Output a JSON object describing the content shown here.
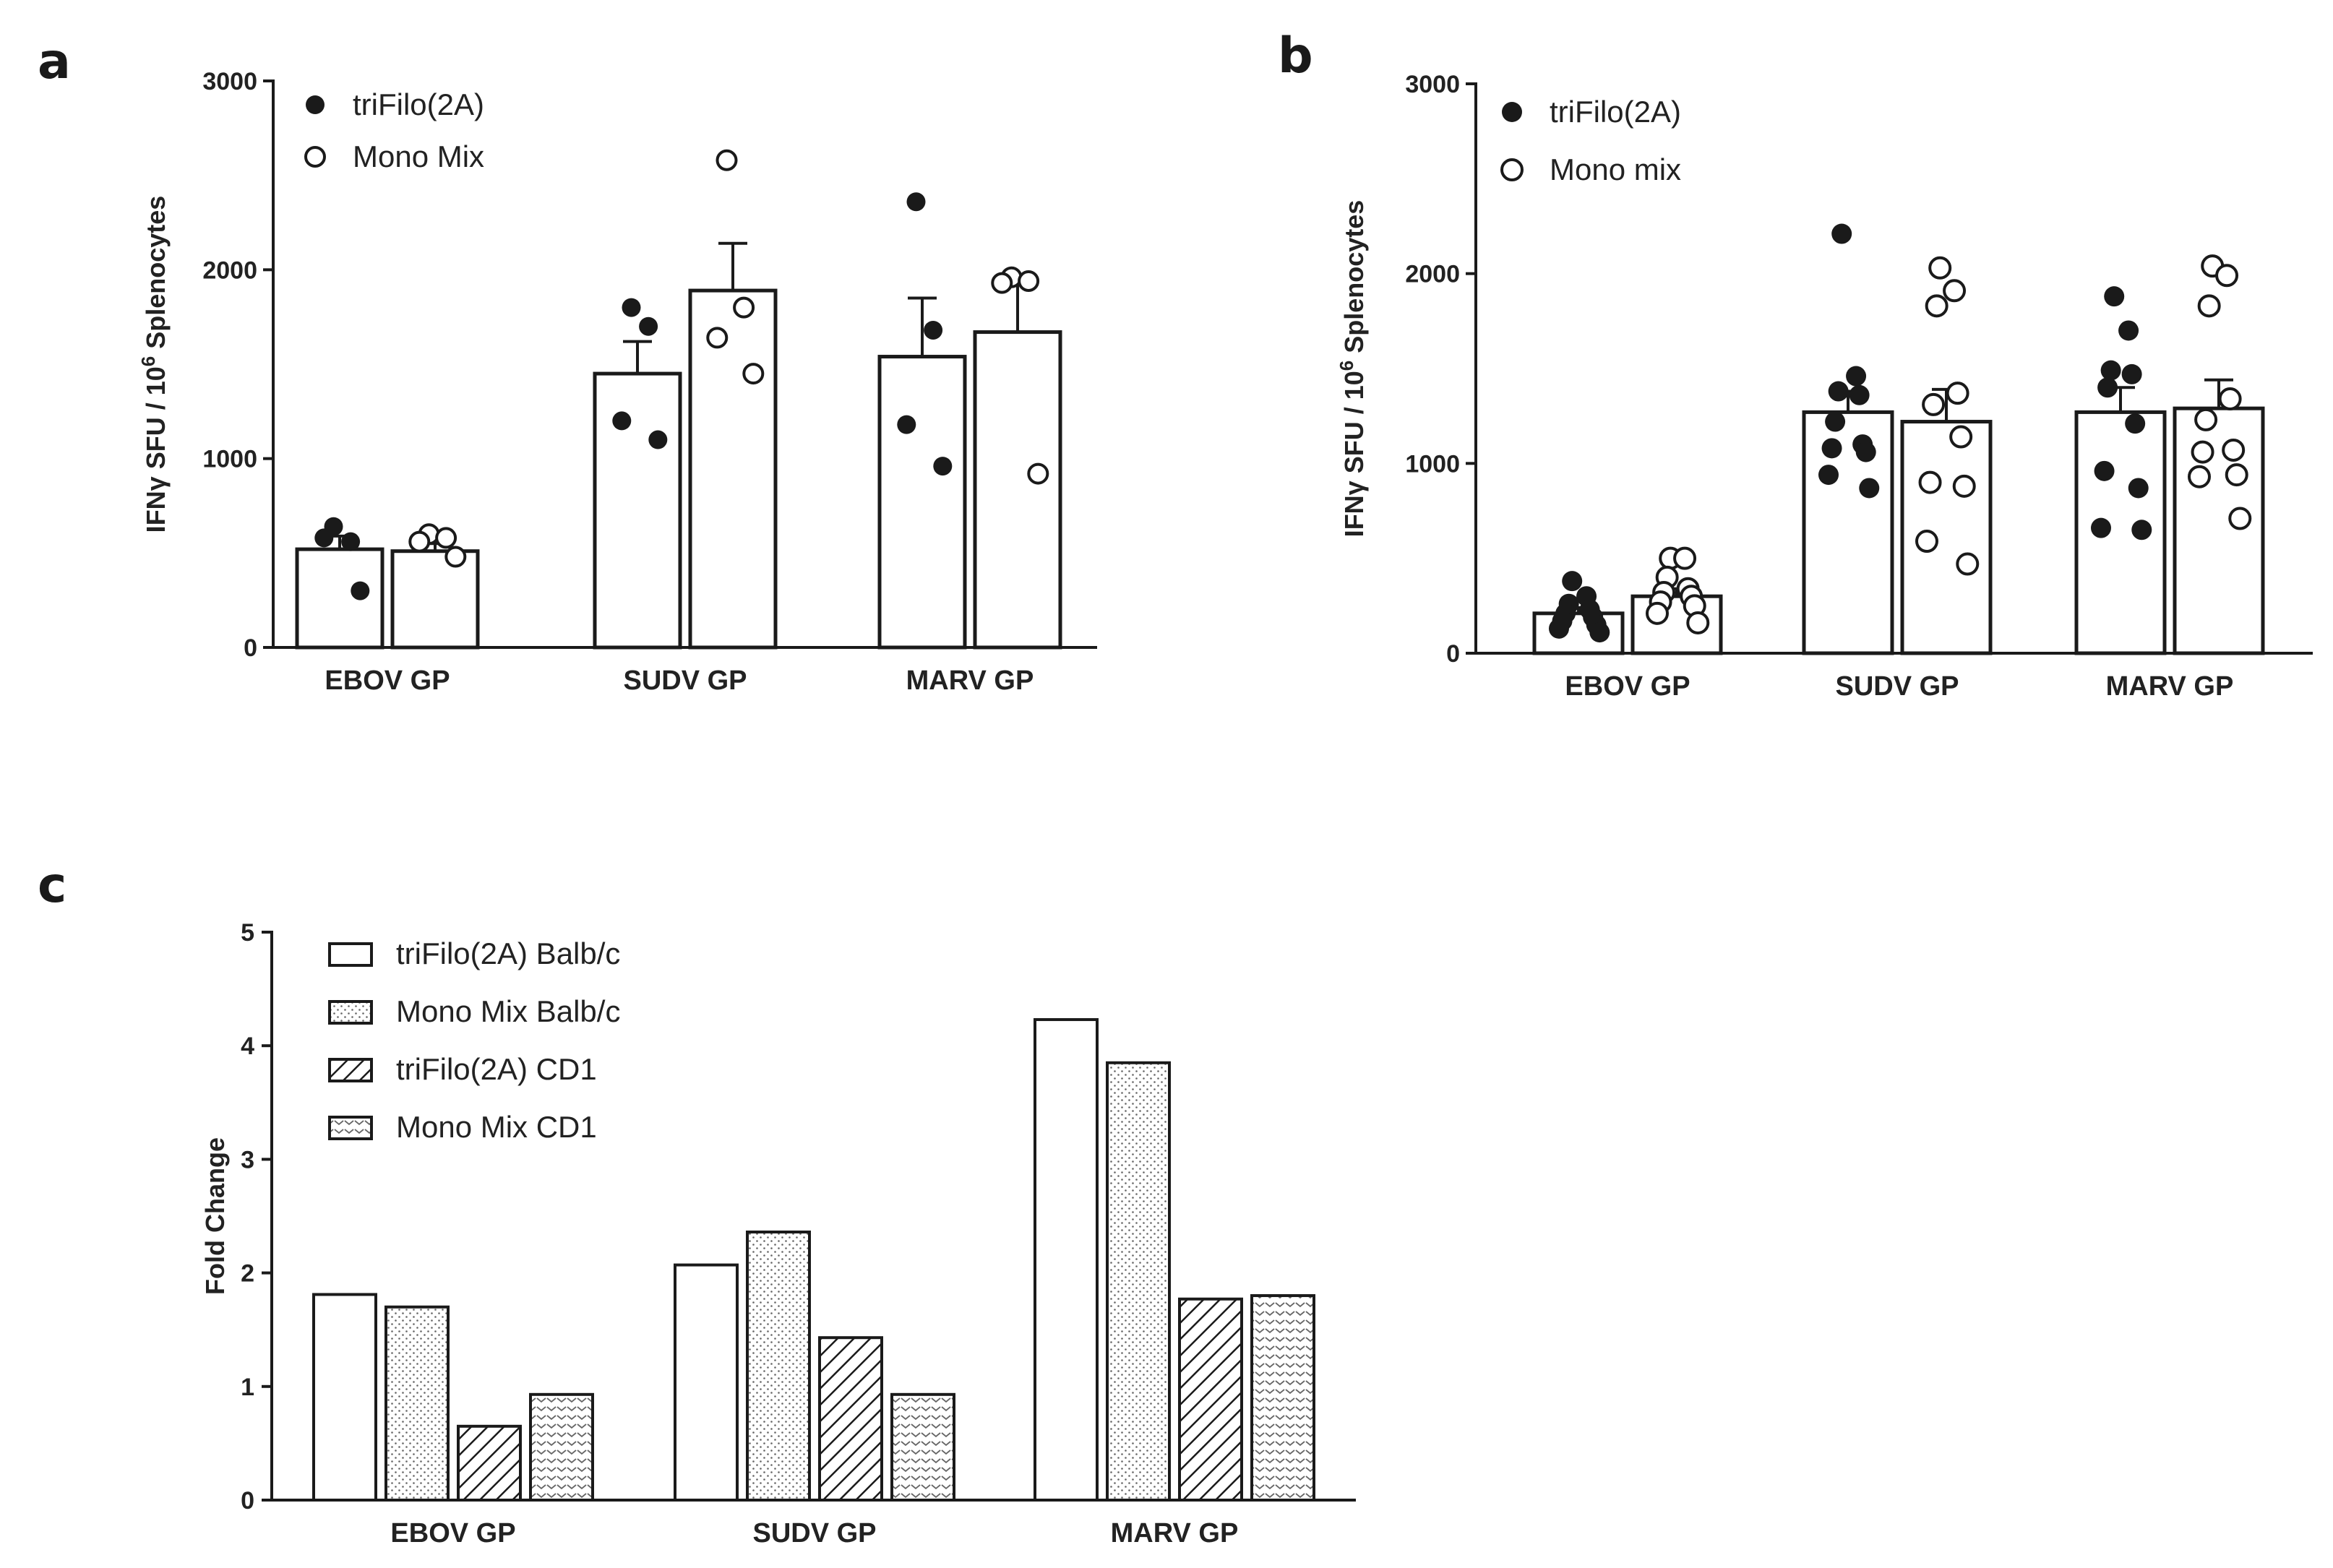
{
  "chart_data": [
    {
      "panel": "a",
      "type": "bar",
      "ylabel_prefix": "IFNγ SFU / 10",
      "ylabel_sup": "6",
      "ylabel_suffix": " Splenocytes",
      "ylim": [
        0,
        3000
      ],
      "yticks": [
        "0",
        "1000",
        "2000",
        "3000"
      ],
      "categories": [
        "EBOV GP",
        "SUDV GP",
        "MARV GP"
      ],
      "legend": [
        "triFilo(2A)",
        "Mono Mix"
      ],
      "series": [
        {
          "name": "triFilo(2A)",
          "marker": "filled",
          "values": [
            520,
            1450,
            1540
          ],
          "errors": [
            70,
            170,
            310
          ],
          "points": [
            [
              640,
              560,
              580,
              300
            ],
            [
              1800,
              1700,
              1200,
              1100
            ],
            [
              2360,
              1680,
              1180,
              960
            ]
          ]
        },
        {
          "name": "Mono Mix",
          "marker": "open",
          "values": [
            510,
            1890,
            1670
          ],
          "errors": [
            40,
            250,
            260
          ],
          "points": [
            [
              600,
              580,
              560,
              480
            ],
            [
              2580,
              1800,
              1640,
              1450
            ],
            [
              1960,
              1940,
              1930,
              920
            ]
          ]
        }
      ]
    },
    {
      "panel": "b",
      "type": "bar",
      "ylabel_prefix": "IFNγ SFU / 10",
      "ylabel_sup": "6",
      "ylabel_suffix": " Splenocytes",
      "ylim": [
        0,
        3000
      ],
      "yticks": [
        "0",
        "1000",
        "2000",
        "3000"
      ],
      "categories": [
        "EBOV GP",
        "SUDV GP",
        "MARV GP"
      ],
      "legend": [
        "triFilo(2A)",
        "Mono mix"
      ],
      "series": [
        {
          "name": "triFilo(2A)",
          "marker": "filled",
          "values": [
            210,
            1270,
            1270
          ],
          "errors": [
            30,
            110,
            130
          ],
          "points": [
            [
              380,
              300,
              260,
              230,
              210,
              190,
              170,
              150,
              130,
              110
            ],
            [
              2210,
              1460,
              1380,
              1360,
              1220,
              1100,
              1080,
              1060,
              940,
              870
            ],
            [
              1880,
              1700,
              1490,
              1470,
              1400,
              1210,
              960,
              870,
              660,
              650
            ]
          ]
        },
        {
          "name": "Mono mix",
          "marker": "open",
          "values": [
            300,
            1220,
            1290
          ],
          "errors": [
            40,
            170,
            150
          ],
          "points": [
            [
              500,
              500,
              400,
              340,
              320,
              300,
              270,
              250,
              210,
              160
            ],
            [
              2030,
              1910,
              1830,
              1370,
              1310,
              1140,
              900,
              880,
              590,
              470
            ],
            [
              2040,
              1990,
              1830,
              1340,
              1230,
              1070,
              1060,
              940,
              930,
              710
            ]
          ]
        }
      ]
    },
    {
      "panel": "c",
      "type": "bar",
      "ylabel": "Fold Change",
      "ylim": [
        0,
        5
      ],
      "yticks": [
        "0",
        "1",
        "2",
        "3",
        "4",
        "5"
      ],
      "categories": [
        "EBOV GP",
        "SUDV GP",
        "MARV GP"
      ],
      "series": [
        {
          "name": "triFilo(2A) Balb/c",
          "pattern": "none",
          "values": [
            1.81,
            2.07,
            4.23
          ]
        },
        {
          "name": "Mono Mix Balb/c",
          "pattern": "dots",
          "values": [
            1.7,
            2.36,
            3.85
          ]
        },
        {
          "name": "triFilo(2A) CD1",
          "pattern": "hatch",
          "values": [
            0.65,
            1.43,
            1.77
          ]
        },
        {
          "name": "Mono Mix CD1",
          "pattern": "chevron",
          "values": [
            0.93,
            0.93,
            1.8
          ]
        }
      ]
    }
  ],
  "colors": {
    "ink": "#1a1a1a",
    "bar_fill": "#ffffff"
  }
}
